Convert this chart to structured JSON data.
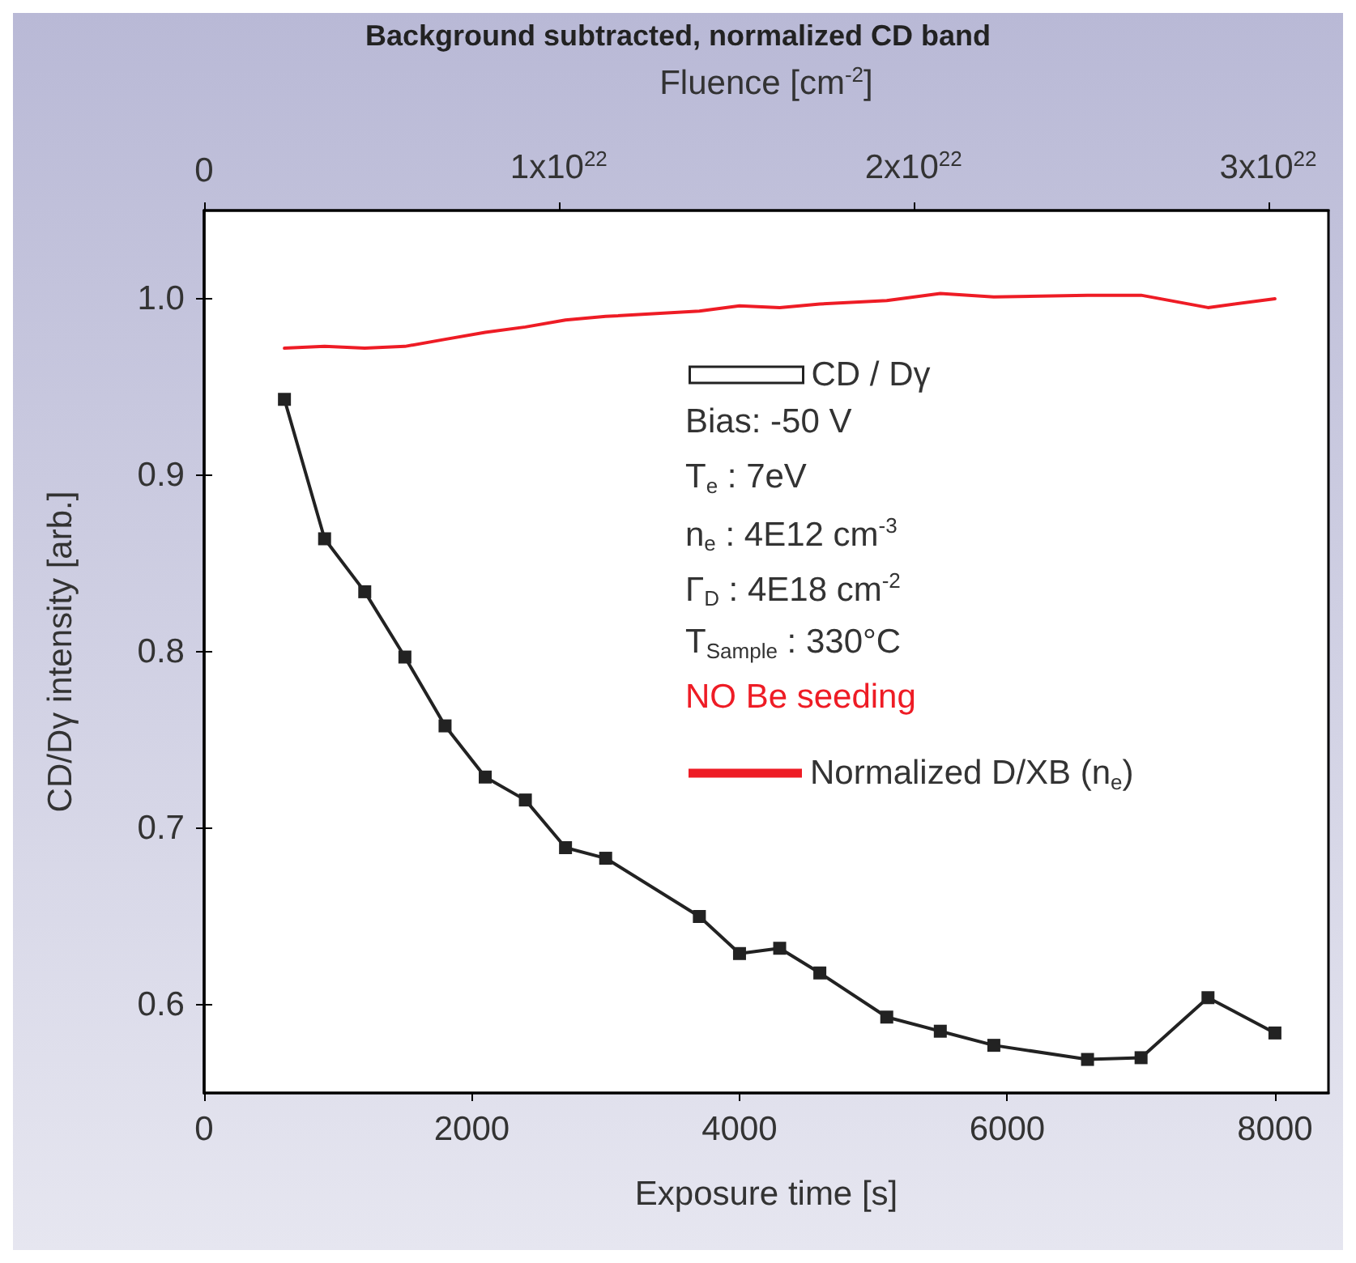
{
  "chart_data": {
    "type": "line",
    "title": "Background subtracted, normalized CD band",
    "xlabel": "Exposure time [s]",
    "ylabel": "CD/Dγ intensity [arb.]",
    "x2label": "Fluence [cm$^{-2}$]",
    "xlim": [
      0,
      8400
    ],
    "xticks": [
      0,
      2000,
      4000,
      6000,
      8000
    ],
    "ylim": [
      0.55,
      1.05
    ],
    "yticks": [
      {
        "value": 0.6,
        "label": "0.6"
      },
      {
        "value": 0.7,
        "label": "0.7"
      },
      {
        "value": 0.8,
        "label": "0.8"
      },
      {
        "value": 0.9,
        "label": "0.9"
      },
      {
        "value": 1.0,
        "label": "1.0"
      }
    ],
    "x2lim": [
      0,
      3.17e+22
    ],
    "x2ticks": [
      0,
      {
        "value": 1e+22,
        "label": "1x10$^{22}$"
      },
      {
        "value": 2e+22,
        "label": "2x10$^{22}$"
      },
      {
        "value": 3e+22,
        "label": "3x10$^{22}$"
      }
    ],
    "x": [
      600,
      900,
      1200,
      1500,
      1800,
      2100,
      2400,
      2700,
      3000,
      3700,
      4000,
      4300,
      4600,
      5100,
      5500,
      5900,
      6600,
      7000,
      7500,
      8000
    ],
    "series": [
      {
        "name": "CD / Dγ",
        "color": "#222222",
        "marker": "square",
        "values": [
          0.943,
          0.864,
          0.834,
          0.797,
          0.758,
          0.729,
          0.716,
          0.689,
          0.683,
          0.65,
          0.629,
          0.632,
          0.618,
          0.593,
          0.585,
          0.577,
          0.569,
          0.57,
          0.604,
          0.584
        ]
      },
      {
        "name": "Normalized D/XB (n$_{e}$)",
        "color": "#ee1c25",
        "marker": "none",
        "values": [
          0.972,
          0.973,
          0.972,
          0.973,
          0.977,
          0.981,
          0.984,
          0.988,
          0.99,
          0.993,
          0.996,
          0.995,
          0.997,
          0.999,
          1.003,
          1.001,
          1.002,
          1.002,
          0.995,
          1.0
        ]
      }
    ],
    "annotations": [
      "Bias: -50 V",
      "T$_{e}$ : 7eV",
      "n$_{e}$ : 4E12 cm$^{-3}$",
      "Γ$_{D}$ : 4E18 cm$^{-2}$",
      "T$_{Sample}$ : 330°C",
      "NO Be seeding"
    ],
    "legend": "top right",
    "grid": false,
    "line_style": "solid"
  }
}
